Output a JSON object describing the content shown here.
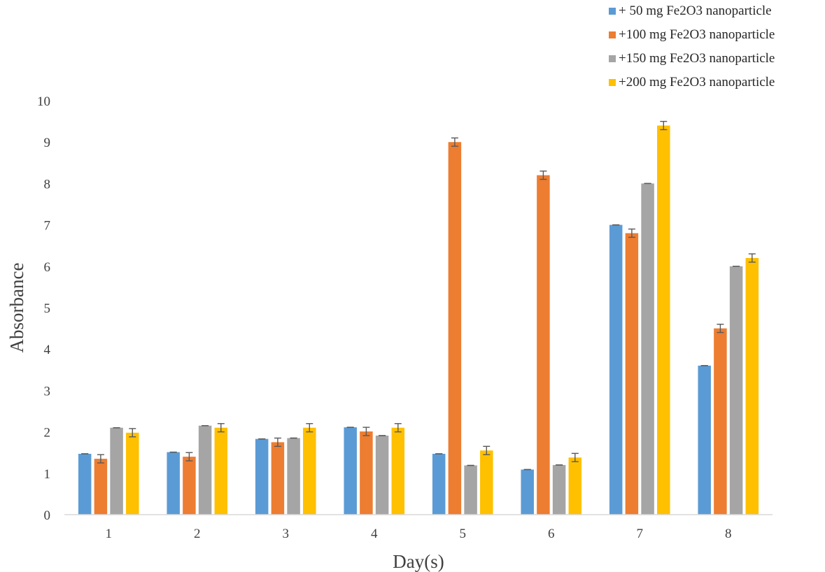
{
  "chart_data": {
    "type": "bar",
    "xlabel": "Day(s)",
    "ylabel": "Absorbance",
    "ylim": [
      0,
      10
    ],
    "yticks": [
      "0",
      "1",
      "2",
      "3",
      "4",
      "5",
      "6",
      "7",
      "8",
      "9",
      "10"
    ],
    "categories": [
      "1",
      "2",
      "3",
      "4",
      "5",
      "6",
      "7",
      "8"
    ],
    "legend_position": "top-right",
    "grid": false,
    "error_bars": true,
    "series": [
      {
        "name": "+ 50 mg Fe2O3 nanoparticle",
        "color": "#5B9BD5",
        "values": [
          1.47,
          1.51,
          1.83,
          2.11,
          1.47,
          1.09,
          7.0,
          3.6
        ],
        "errors": [
          0.0,
          0.0,
          0.0,
          0.0,
          0.0,
          0.0,
          0.0,
          0.0
        ]
      },
      {
        "name": "+100 mg Fe2O3 nanoparticle",
        "color": "#ED7D31",
        "values": [
          1.35,
          1.4,
          1.75,
          2.01,
          9.0,
          8.2,
          6.8,
          4.5
        ],
        "errors": [
          0.1,
          0.1,
          0.1,
          0.1,
          0.1,
          0.1,
          0.1,
          0.1
        ]
      },
      {
        "name": "+150 mg Fe2O3 nanoparticle",
        "color": "#A5A5A5",
        "values": [
          2.1,
          2.15,
          1.85,
          1.91,
          1.19,
          1.2,
          8.0,
          6.0
        ],
        "errors": [
          0.0,
          0.0,
          0.0,
          0.0,
          0.0,
          0.0,
          0.0,
          0.0
        ]
      },
      {
        "name": "+200 mg Fe2O3 nanoparticle",
        "color": "#FFC000",
        "values": [
          1.98,
          2.1,
          2.1,
          2.1,
          1.55,
          1.38,
          9.4,
          6.2
        ],
        "errors": [
          0.1,
          0.1,
          0.1,
          0.1,
          0.1,
          0.1,
          0.1,
          0.1
        ]
      }
    ]
  }
}
